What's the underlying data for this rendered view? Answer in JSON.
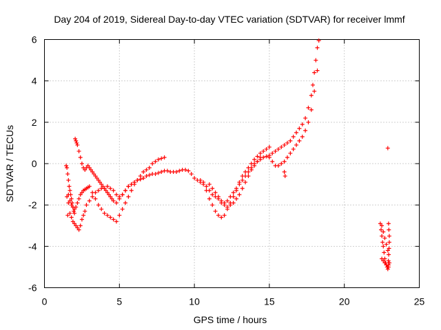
{
  "chart_data": {
    "type": "scatter",
    "title": "Day 204 of 2019, Sidereal Day-to-day VTEC variation (SDTVAR) for receiver lmmf",
    "xlabel": "GPS time / hours",
    "ylabel": "SDTVAR / TECUs",
    "xlim": [
      0,
      25
    ],
    "ylim": [
      -6,
      6
    ],
    "xticks": [
      "0",
      "5",
      "10",
      "15",
      "20",
      "25"
    ],
    "yticks": [
      "-6",
      "-4",
      "-2",
      "0",
      "2",
      "4",
      "6"
    ],
    "grid": true,
    "marker": "plus",
    "color": "#ff0000",
    "series": [
      {
        "x": [
          1.45,
          1.5,
          1.55,
          1.6,
          1.7,
          1.8,
          1.9,
          2.0,
          2.1,
          2.2,
          2.3,
          2.4,
          2.5,
          2.6,
          2.7,
          2.8,
          3.0,
          3.2,
          3.4,
          3.6,
          3.8,
          4.0,
          4.2,
          4.4,
          4.6,
          4.8,
          5.0,
          5.2,
          5.4,
          5.6,
          5.8,
          6.0,
          6.2,
          6.4,
          6.6,
          6.8,
          7.0,
          7.2,
          7.4,
          7.6,
          7.8,
          8.0,
          8.2,
          8.4,
          8.6,
          8.8,
          9.0,
          9.2,
          9.4,
          9.6,
          9.8,
          10.0,
          10.2,
          10.4,
          10.6,
          10.8,
          11.0,
          11.2,
          11.4,
          11.6,
          11.8,
          12.0,
          12.2,
          12.4,
          12.6,
          12.8,
          13.0,
          13.2,
          13.4,
          13.6,
          13.8,
          14.0,
          14.2,
          14.4,
          14.6,
          14.8,
          15.0,
          15.2,
          15.4,
          15.6,
          15.8,
          16.0,
          16.2,
          16.4,
          16.6,
          16.8,
          17.0,
          17.2,
          17.4,
          17.6,
          17.8,
          17.9,
          18.0,
          18.1,
          18.2,
          18.3
        ],
        "y": [
          -0.1,
          -1.6,
          -2.5,
          -1.9,
          -2.4,
          -2.6,
          -2.8,
          -2.9,
          -3.0,
          -3.1,
          -3.2,
          -3.0,
          -2.7,
          -2.5,
          -2.3,
          -2.0,
          -1.8,
          -1.6,
          -1.4,
          -1.3,
          -1.2,
          -1.2,
          -1.1,
          -1.2,
          -1.3,
          -1.5,
          -1.6,
          -1.5,
          -1.3,
          -1.1,
          -1.0,
          -0.9,
          -0.8,
          -0.75,
          -0.7,
          -0.6,
          -0.55,
          -0.5,
          -0.5,
          -0.45,
          -0.4,
          -0.35,
          -0.35,
          -0.4,
          -0.4,
          -0.4,
          -0.35,
          -0.3,
          -0.3,
          -0.35,
          -0.5,
          -0.7,
          -0.8,
          -0.9,
          -1.0,
          -1.3,
          -1.7,
          -2.0,
          -2.3,
          -2.5,
          -2.6,
          -2.5,
          -2.2,
          -1.9,
          -1.6,
          -1.3,
          -1.0,
          -0.8,
          -0.6,
          -0.4,
          -0.2,
          0.0,
          0.1,
          0.2,
          0.3,
          0.35,
          0.4,
          0.5,
          0.6,
          0.7,
          0.8,
          0.9,
          1.0,
          1.1,
          1.3,
          1.5,
          1.7,
          1.9,
          2.2,
          2.7,
          3.3,
          3.8,
          4.4,
          5.0,
          5.6,
          5.95
        ]
      },
      {
        "x": [
          1.6,
          1.7,
          1.8,
          1.9,
          2.0,
          2.1,
          2.2,
          2.3,
          2.4,
          2.5,
          2.6,
          2.7,
          2.8,
          2.9,
          3.0,
          3.2,
          3.4,
          3.6,
          3.8,
          4.0,
          4.2,
          4.4,
          4.6,
          4.8,
          5.0,
          5.2,
          5.4,
          5.6,
          5.8,
          6.0,
          6.2,
          6.4,
          6.6,
          6.8,
          7.0,
          7.2,
          7.4,
          7.6,
          7.8,
          8.0
        ],
        "y": [
          -1.5,
          -1.8,
          -2.0,
          -2.1,
          -2.2,
          -2.1,
          -1.9,
          -1.7,
          -1.5,
          -1.4,
          -1.3,
          -1.25,
          -1.2,
          -1.15,
          -1.1,
          -1.4,
          -1.7,
          -2.0,
          -2.2,
          -2.4,
          -2.5,
          -2.6,
          -2.7,
          -2.8,
          -2.5,
          -2.2,
          -1.9,
          -1.6,
          -1.3,
          -1.0,
          -0.8,
          -0.6,
          -0.4,
          -0.3,
          -0.2,
          0.0,
          0.1,
          0.2,
          0.25,
          0.3
        ]
      },
      {
        "x": [
          2.05,
          2.1,
          2.15,
          2.2,
          2.3,
          2.4,
          2.5,
          2.6,
          2.7,
          2.8,
          2.9,
          3.0,
          3.1,
          3.2,
          3.3,
          3.4,
          3.5,
          3.6,
          3.7,
          3.8,
          3.9,
          4.0,
          4.1,
          4.2,
          4.3,
          4.4,
          4.5,
          4.6,
          4.8,
          5.0,
          5.2,
          5.4,
          5.6,
          5.8,
          6.0,
          6.2,
          6.4,
          6.6
        ],
        "y": [
          1.2,
          1.1,
          1.0,
          0.9,
          0.6,
          0.3,
          0.0,
          -0.2,
          -0.3,
          -0.2,
          -0.1,
          -0.2,
          -0.3,
          -0.4,
          -0.5,
          -0.6,
          -0.7,
          -0.8,
          -0.9,
          -1.0,
          -1.1,
          -1.2,
          -1.3,
          -1.4,
          -1.5,
          -1.6,
          -1.7,
          -1.8,
          -1.9,
          -1.7,
          -1.5,
          -1.3,
          -1.1,
          -1.0,
          -0.9,
          -0.8,
          -0.75,
          -0.7
        ]
      },
      {
        "x": [
          1.5,
          1.55,
          1.6,
          1.65,
          1.7,
          1.75,
          1.8,
          1.85,
          1.9,
          1.95,
          2.0
        ],
        "y": [
          -0.2,
          -0.5,
          -0.8,
          -1.1,
          -1.3,
          -1.5,
          -1.7,
          -1.9,
          -2.1,
          -2.3,
          -2.4
        ]
      },
      {
        "x": [
          10.4,
          10.6,
          10.8,
          11.0,
          11.2,
          11.4,
          11.6,
          11.8,
          12.0,
          12.2,
          12.4,
          12.6,
          12.8,
          13.0,
          13.2,
          13.4,
          13.6,
          13.8,
          14.0,
          14.2,
          14.4,
          14.6,
          14.8,
          15.0
        ],
        "y": [
          -0.8,
          -0.9,
          -1.1,
          -1.3,
          -1.5,
          -1.6,
          -1.7,
          -1.8,
          -1.9,
          -1.8,
          -1.6,
          -1.4,
          -1.2,
          -0.9,
          -0.6,
          -0.4,
          -0.2,
          0.0,
          0.2,
          0.35,
          0.5,
          0.6,
          0.7,
          0.8
        ]
      },
      {
        "x": [
          11.0,
          11.2,
          11.4,
          11.6,
          11.8,
          12.0,
          12.2,
          12.4,
          12.6,
          12.8,
          13.0,
          13.2,
          13.4,
          13.6,
          13.8,
          14.0,
          14.2,
          14.4
        ],
        "y": [
          -1.0,
          -1.2,
          -1.4,
          -1.6,
          -1.9,
          -2.0,
          -2.1,
          -2.0,
          -1.9,
          -1.7,
          -1.5,
          -1.2,
          -0.9,
          -0.6,
          -0.3,
          -0.1,
          0.1,
          0.3
        ]
      },
      {
        "x": [
          15.0,
          15.2,
          15.4,
          15.6,
          15.8,
          16.0,
          16.2,
          16.4,
          16.6,
          16.8,
          17.0,
          17.2,
          17.4,
          17.6,
          17.8,
          18.0,
          18.2
        ],
        "y": [
          0.3,
          0.1,
          -0.1,
          -0.1,
          0.0,
          0.1,
          0.3,
          0.5,
          0.7,
          0.9,
          1.1,
          1.3,
          1.6,
          2.0,
          2.6,
          3.5,
          4.5
        ]
      },
      {
        "x": [
          16.0,
          16.05
        ],
        "y": [
          -0.4,
          -0.6
        ]
      },
      {
        "x": [
          22.4,
          22.45,
          22.5,
          22.55,
          22.6,
          22.65,
          22.7,
          22.75,
          22.8,
          22.85,
          22.9,
          22.95,
          23.0,
          22.5,
          22.6,
          22.7,
          22.8,
          22.9,
          22.5,
          22.6,
          22.7,
          22.8,
          22.9,
          22.95
        ],
        "y": [
          -2.9,
          -3.2,
          -3.5,
          -3.8,
          -4.0,
          -4.3,
          -4.6,
          -4.8,
          -4.9,
          -5.0,
          -5.0,
          -4.9,
          -4.8,
          -3.0,
          -3.3,
          -3.6,
          -3.9,
          -4.2,
          -4.6,
          -4.7,
          -4.8,
          -4.9,
          -5.1,
          -5.0
        ]
      },
      {
        "x": [
          22.95,
          22.97,
          23.0,
          23.0,
          22.98,
          22.96,
          22.94
        ],
        "y": [
          -2.9,
          -3.2,
          -3.5,
          -3.8,
          -4.1,
          -4.4,
          -4.7
        ]
      },
      {
        "x": [
          22.9
        ],
        "y": [
          0.75
        ]
      }
    ]
  }
}
